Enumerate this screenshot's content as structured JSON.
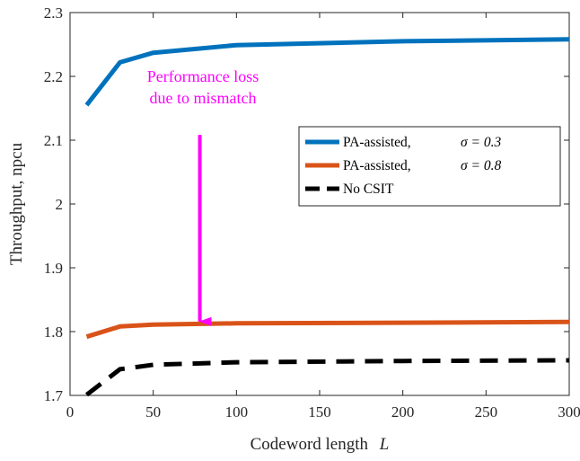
{
  "chart_data": {
    "type": "line",
    "xlabel": "Codeword length",
    "xlabel_symbol": "L",
    "ylabel": "Throughput, npcu",
    "xlim": [
      0,
      300
    ],
    "ylim": [
      1.7,
      2.3
    ],
    "x_ticks": [
      0,
      50,
      100,
      150,
      200,
      250,
      300
    ],
    "y_ticks": [
      1.7,
      1.8,
      1.9,
      2.0,
      2.1,
      2.2,
      2.3
    ],
    "x_tick_labels": [
      "0",
      "50",
      "100",
      "150",
      "200",
      "250",
      "300"
    ],
    "y_tick_labels": [
      "1.7",
      "1.8",
      "1.9",
      "2",
      "2.1",
      "2.2",
      "2.3"
    ],
    "grid": false,
    "legend_placement": "right",
    "series": [
      {
        "name": "PA-assisted,",
        "sigma_label": "σ = 0.3",
        "color": "#0072bd",
        "style": "solid",
        "x": [
          10,
          30,
          50,
          100,
          200,
          300
        ],
        "y": [
          2.155,
          2.222,
          2.237,
          2.249,
          2.255,
          2.258
        ]
      },
      {
        "name": "PA-assisted,",
        "sigma_label": "σ = 0.8",
        "color": "#d95319",
        "style": "solid",
        "x": [
          10,
          30,
          50,
          100,
          200,
          300
        ],
        "y": [
          1.792,
          1.808,
          1.811,
          1.813,
          1.814,
          1.815
        ]
      },
      {
        "name": "No CSIT",
        "sigma_label": "",
        "color": "#000000",
        "style": "dashed",
        "x": [
          10,
          30,
          50,
          100,
          200,
          300
        ],
        "y": [
          1.701,
          1.741,
          1.748,
          1.752,
          1.754,
          1.755
        ]
      }
    ],
    "annotation": {
      "lines": [
        "Performance loss",
        "due to mismatch"
      ],
      "color": "#ff00ff",
      "arrow_x": 78,
      "arrow_from_y": 2.235,
      "arrow_to_y": 1.813
    }
  }
}
